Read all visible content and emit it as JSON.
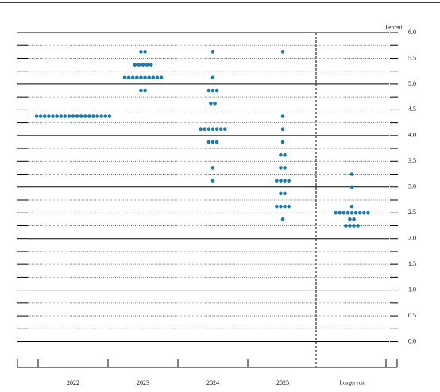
{
  "chart_data": {
    "type": "dot",
    "y_axis_label": "Percent",
    "categories": [
      "2022",
      "2023",
      "2024",
      "2025",
      "Longer run"
    ],
    "dots": [
      [
        {
          "value": 4.375,
          "count": 19
        }
      ],
      [
        {
          "value": 5.625,
          "count": 2
        },
        {
          "value": 5.375,
          "count": 5
        },
        {
          "value": 5.125,
          "count": 10
        },
        {
          "value": 4.875,
          "count": 2
        }
      ],
      [
        {
          "value": 5.625,
          "count": 1
        },
        {
          "value": 5.125,
          "count": 1
        },
        {
          "value": 4.875,
          "count": 3
        },
        {
          "value": 4.625,
          "count": 2
        },
        {
          "value": 4.125,
          "count": 7
        },
        {
          "value": 3.875,
          "count": 3
        },
        {
          "value": 3.375,
          "count": 1
        },
        {
          "value": 3.125,
          "count": 1
        }
      ],
      [
        {
          "value": 5.625,
          "count": 1
        },
        {
          "value": 4.375,
          "count": 1
        },
        {
          "value": 4.125,
          "count": 1
        },
        {
          "value": 3.875,
          "count": 1
        },
        {
          "value": 3.625,
          "count": 2
        },
        {
          "value": 3.375,
          "count": 2
        },
        {
          "value": 3.125,
          "count": 4
        },
        {
          "value": 2.875,
          "count": 2
        },
        {
          "value": 2.625,
          "count": 4
        },
        {
          "value": 2.375,
          "count": 1
        }
      ],
      [
        {
          "value": 3.25,
          "count": 1
        },
        {
          "value": 3.0,
          "count": 1
        },
        {
          "value": 2.625,
          "count": 1
        },
        {
          "value": 2.5,
          "count": 9
        },
        {
          "value": 2.375,
          "count": 2
        },
        {
          "value": 2.25,
          "count": 4
        }
      ]
    ],
    "color": "#1a7aad",
    "ylim": [
      -0.5,
      6.0
    ],
    "yticks": [
      {
        "value": 6,
        "label": "6.0"
      },
      5.5,
      {
        "value": 5,
        "label": "5.0"
      },
      4.5,
      {
        "value": 4,
        "label": "4.0"
      },
      3.5,
      {
        "value": 3,
        "label": "3.0"
      },
      2.5,
      {
        "value": 2,
        "label": "2.0"
      },
      1.5,
      {
        "value": 1,
        "label": "1.0"
      },
      0.5,
      {
        "value": 0,
        "label": "0.0"
      }
    ],
    "grid": true
  }
}
